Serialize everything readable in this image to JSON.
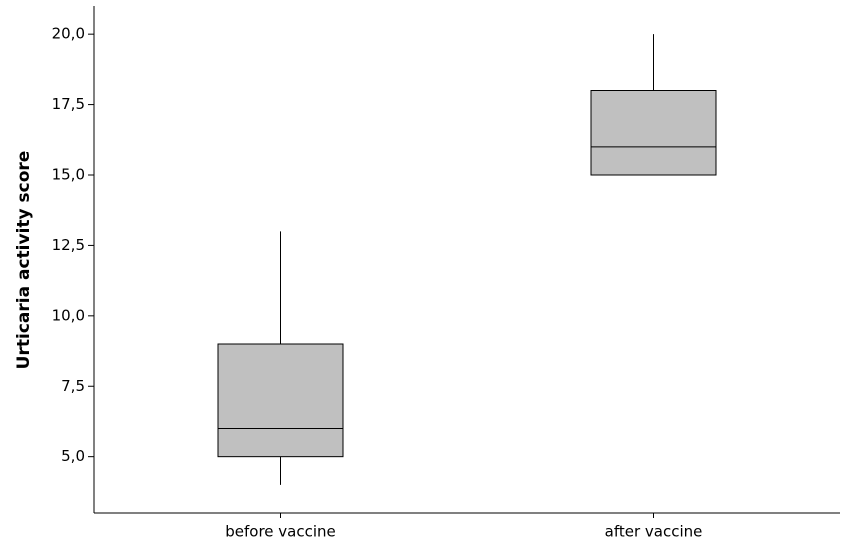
{
  "chart_data": {
    "type": "box",
    "ylabel": "Urticaria activity score",
    "categories": [
      "before vaccine",
      "after vaccine"
    ],
    "min": [
      4,
      15
    ],
    "q1": [
      5,
      15
    ],
    "median": [
      6,
      16
    ],
    "q3": [
      9,
      18
    ],
    "max": [
      13,
      20
    ],
    "color": "#c0c0c0",
    "ylim": [
      3,
      21
    ],
    "yticks": [
      {
        "value": 5,
        "label": "5,0"
      },
      {
        "value": 7.5,
        "label": "7,5"
      },
      {
        "value": 10,
        "label": "10,0"
      },
      {
        "value": 12.5,
        "label": "12,5"
      },
      {
        "value": 15,
        "label": "15,0"
      },
      {
        "value": 17.5,
        "label": "17,5"
      },
      {
        "value": 20,
        "label": "20,0"
      }
    ]
  }
}
